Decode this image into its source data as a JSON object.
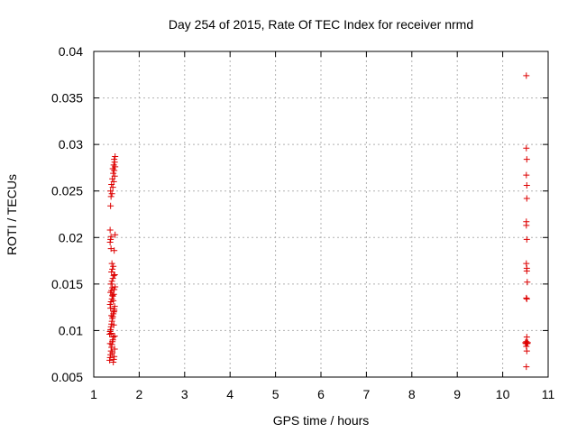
{
  "chart_data": {
    "type": "scatter",
    "title": "Day 254 of 2015, Rate Of TEC Index for receiver nrmd",
    "xlabel": "GPS time / hours",
    "ylabel": "ROTI / TECUs",
    "xlim": [
      1,
      11
    ],
    "ylim": [
      0.005,
      0.04
    ],
    "xticks": [
      1,
      2,
      3,
      4,
      5,
      6,
      7,
      8,
      9,
      10,
      11
    ],
    "xtick_labels": [
      "1",
      "2",
      "3",
      "4",
      "5",
      "6",
      "7",
      "8",
      "9",
      "10",
      "11"
    ],
    "yticks": [
      0.005,
      0.01,
      0.015,
      0.02,
      0.025,
      0.03,
      0.035,
      0.04
    ],
    "ytick_labels": [
      "0.005",
      "0.01",
      "0.015",
      "0.02",
      "0.025",
      "0.03",
      "0.035",
      "0.04"
    ],
    "grid": true,
    "marker": "+",
    "marker_color": "#dd0000",
    "series": [
      {
        "points": [
          [
            1.35,
            0.0068
          ],
          [
            1.36,
            0.0071
          ],
          [
            1.37,
            0.0074
          ],
          [
            1.38,
            0.0078
          ],
          [
            1.39,
            0.0082
          ],
          [
            1.4,
            0.0085
          ],
          [
            1.41,
            0.0088
          ],
          [
            1.42,
            0.009
          ],
          [
            1.43,
            0.0093
          ],
          [
            1.44,
            0.0069
          ],
          [
            1.45,
            0.0072
          ],
          [
            1.46,
            0.008
          ],
          [
            1.35,
            0.0096
          ],
          [
            1.36,
            0.0099
          ],
          [
            1.37,
            0.0101
          ],
          [
            1.38,
            0.0104
          ],
          [
            1.39,
            0.0107
          ],
          [
            1.4,
            0.011
          ],
          [
            1.41,
            0.0113
          ],
          [
            1.42,
            0.0115
          ],
          [
            1.43,
            0.0118
          ],
          [
            1.44,
            0.012
          ],
          [
            1.45,
            0.0123
          ],
          [
            1.46,
            0.0126
          ],
          [
            1.36,
            0.0128
          ],
          [
            1.38,
            0.0131
          ],
          [
            1.4,
            0.0134
          ],
          [
            1.42,
            0.0137
          ],
          [
            1.44,
            0.0139
          ],
          [
            1.37,
            0.0141
          ],
          [
            1.39,
            0.0143
          ],
          [
            1.41,
            0.0146
          ],
          [
            1.47,
            0.0147
          ],
          [
            1.38,
            0.015
          ],
          [
            1.4,
            0.0153
          ],
          [
            1.42,
            0.0156
          ],
          [
            1.44,
            0.0159
          ],
          [
            1.46,
            0.016
          ],
          [
            1.39,
            0.0163
          ],
          [
            1.41,
            0.0166
          ],
          [
            1.43,
            0.0169
          ],
          [
            1.4,
            0.0172
          ],
          [
            1.45,
            0.0186
          ],
          [
            1.38,
            0.0188
          ],
          [
            1.36,
            0.0195
          ],
          [
            1.37,
            0.0198
          ],
          [
            1.38,
            0.0201
          ],
          [
            1.47,
            0.0203
          ],
          [
            1.36,
            0.0208
          ],
          [
            1.37,
            0.0234
          ],
          [
            1.38,
            0.0244
          ],
          [
            1.4,
            0.0247
          ],
          [
            1.37,
            0.025
          ],
          [
            1.42,
            0.0254
          ],
          [
            1.39,
            0.0257
          ],
          [
            1.44,
            0.026
          ],
          [
            1.41,
            0.0263
          ],
          [
            1.46,
            0.0266
          ],
          [
            1.43,
            0.0269
          ],
          [
            1.45,
            0.0272
          ],
          [
            1.42,
            0.0274
          ],
          [
            1.47,
            0.0276
          ],
          [
            1.44,
            0.0278
          ],
          [
            1.46,
            0.0281
          ],
          [
            1.45,
            0.0284
          ],
          [
            1.47,
            0.0287
          ],
          [
            1.43,
            0.0066
          ],
          [
            1.41,
            0.0076
          ],
          [
            1.36,
            0.0086
          ],
          [
            1.46,
            0.0094
          ],
          [
            1.38,
            0.0097
          ],
          [
            1.44,
            0.0106
          ],
          [
            1.39,
            0.0116
          ],
          [
            1.45,
            0.0121
          ],
          [
            1.37,
            0.0124
          ],
          [
            1.43,
            0.0132
          ],
          [
            1.41,
            0.0138
          ],
          [
            1.45,
            0.0144
          ]
        ]
      },
      {
        "points": [
          [
            10.52,
            0.0374
          ],
          [
            10.52,
            0.0296
          ],
          [
            10.53,
            0.0284
          ],
          [
            10.52,
            0.0267
          ],
          [
            10.53,
            0.0256
          ],
          [
            10.53,
            0.0242
          ],
          [
            10.52,
            0.0217
          ],
          [
            10.52,
            0.0213
          ],
          [
            10.53,
            0.0198
          ],
          [
            10.52,
            0.0172
          ],
          [
            10.53,
            0.0167
          ],
          [
            10.53,
            0.0164
          ],
          [
            10.54,
            0.0152
          ],
          [
            10.52,
            0.0135
          ],
          [
            10.53,
            0.0134
          ],
          [
            10.53,
            0.0093
          ],
          [
            10.5,
            0.0087
          ],
          [
            10.51,
            0.0086
          ],
          [
            10.52,
            0.0088
          ],
          [
            10.53,
            0.0087
          ],
          [
            10.54,
            0.0086
          ],
          [
            10.55,
            0.0087
          ],
          [
            10.52,
            0.0083
          ],
          [
            10.53,
            0.0078
          ],
          [
            10.52,
            0.0061
          ]
        ]
      }
    ]
  }
}
